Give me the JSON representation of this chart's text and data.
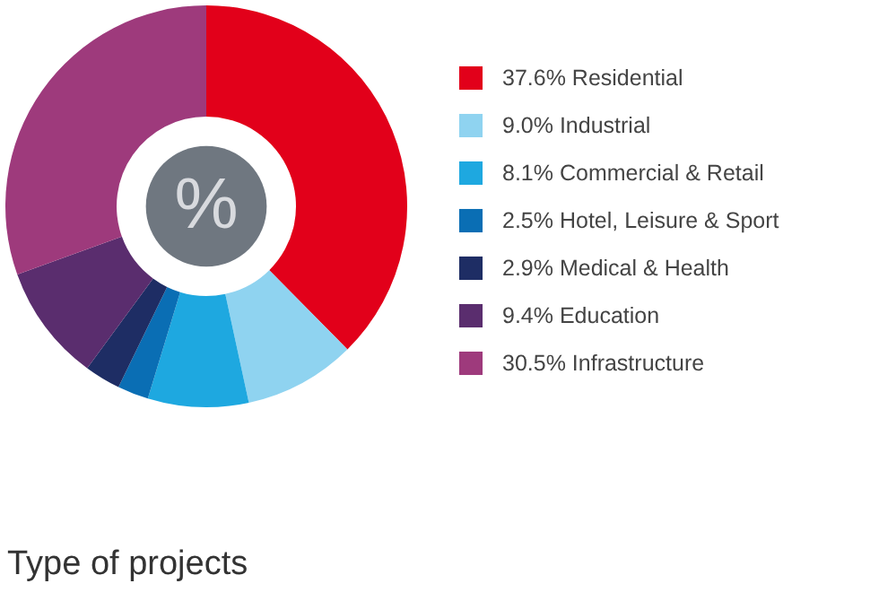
{
  "chart_data": {
    "type": "donut",
    "title": "Type of projects",
    "categories": [
      "Residential",
      "Industrial",
      "Commercial & Retail",
      "Hotel, Leisure & Sport",
      "Medical & Health",
      "Education",
      "Infrastructure"
    ],
    "values": [
      37.6,
      9.0,
      8.1,
      2.5,
      2.9,
      9.4,
      30.5
    ],
    "value_labels": [
      "37.6%",
      "9.0%",
      "8.1%",
      "2.5%",
      "2.9%",
      "9.4%",
      "30.5%"
    ],
    "colors": [
      "#e2001a",
      "#8fd3f0",
      "#1ea8e0",
      "#0a6eb4",
      "#1e2d64",
      "#5a2d6e",
      "#9e3a7c"
    ],
    "annotations": [
      "%"
    ],
    "legend": "right"
  }
}
